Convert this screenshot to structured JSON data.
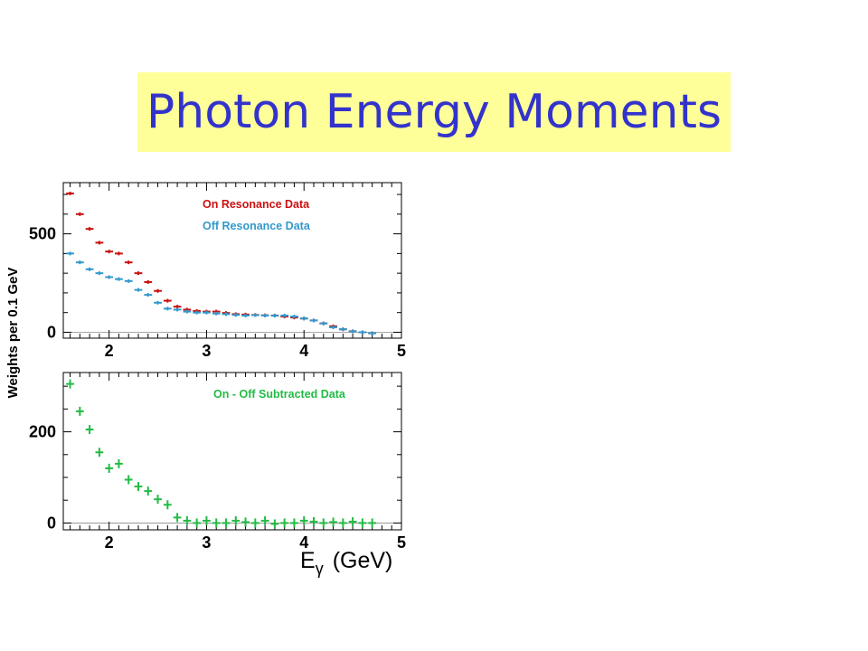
{
  "slide": {
    "title": "Photon Energy Moments",
    "colors": {
      "title_text": "#3333cc",
      "title_bg": "#ffff99"
    }
  },
  "figure": {
    "ylabel": "Weights per 0.1 GeV",
    "xlabel_main": "E",
    "xlabel_sub": "γ",
    "xlabel_unit": "(GeV)"
  },
  "chart_data": [
    {
      "type": "scatter",
      "panel": "top",
      "xlim": [
        1.53,
        5.0
      ],
      "ylim": [
        -30,
        760
      ],
      "xticks": [
        2,
        3,
        4,
        5
      ],
      "yticks": [
        0,
        500
      ],
      "legend_position": "top-right",
      "series": [
        {
          "name": "On Resonance Data",
          "color": "#cc1111",
          "x": [
            1.6,
            1.7,
            1.8,
            1.9,
            2.0,
            2.1,
            2.2,
            2.3,
            2.4,
            2.5,
            2.6,
            2.7,
            2.8,
            2.9,
            3.0,
            3.1,
            3.2,
            3.3,
            3.4,
            3.5,
            3.6,
            3.7,
            3.8,
            3.9,
            4.0,
            4.1,
            4.2,
            4.3,
            4.4,
            4.5,
            4.6,
            4.7
          ],
          "y": [
            705,
            600,
            525,
            455,
            410,
            400,
            355,
            300,
            255,
            210,
            160,
            130,
            115,
            108,
            105,
            105,
            98,
            92,
            90,
            88,
            86,
            85,
            80,
            75,
            70,
            60,
            45,
            30,
            15,
            5,
            0,
            -5
          ]
        },
        {
          "name": "Off Resonance Data",
          "color": "#3399cc",
          "x": [
            1.6,
            1.7,
            1.8,
            1.9,
            2.0,
            2.1,
            2.2,
            2.3,
            2.4,
            2.5,
            2.6,
            2.7,
            2.8,
            2.9,
            3.0,
            3.1,
            3.2,
            3.3,
            3.4,
            3.5,
            3.6,
            3.7,
            3.8,
            3.9,
            4.0,
            4.1,
            4.2,
            4.3,
            4.4,
            4.5,
            4.6,
            4.7
          ],
          "y": [
            400,
            355,
            320,
            300,
            280,
            270,
            260,
            215,
            190,
            150,
            120,
            115,
            105,
            100,
            100,
            95,
            92,
            88,
            85,
            87,
            85,
            84,
            85,
            80,
            70,
            60,
            45,
            25,
            15,
            5,
            0,
            -5
          ]
        }
      ]
    },
    {
      "type": "scatter",
      "panel": "bottom",
      "xlim": [
        1.53,
        5.0
      ],
      "ylim": [
        -15,
        330
      ],
      "xticks": [
        2,
        3,
        4,
        5
      ],
      "yticks": [
        0,
        200
      ],
      "legend_position": "top-right",
      "series": [
        {
          "name": "On - Off Subtracted Data",
          "color": "#22bb44",
          "x": [
            1.6,
            1.7,
            1.8,
            1.9,
            2.0,
            2.1,
            2.2,
            2.3,
            2.4,
            2.5,
            2.6,
            2.7,
            2.8,
            2.9,
            3.0,
            3.1,
            3.2,
            3.3,
            3.4,
            3.5,
            3.6,
            3.7,
            3.8,
            3.9,
            4.0,
            4.1,
            4.2,
            4.3,
            4.4,
            4.5,
            4.6,
            4.7
          ],
          "y": [
            305,
            245,
            205,
            155,
            120,
            130,
            95,
            80,
            70,
            52,
            40,
            12,
            5,
            0,
            5,
            0,
            0,
            5,
            2,
            0,
            5,
            -2,
            0,
            0,
            5,
            3,
            0,
            2,
            0,
            3,
            0,
            0
          ]
        }
      ]
    }
  ]
}
